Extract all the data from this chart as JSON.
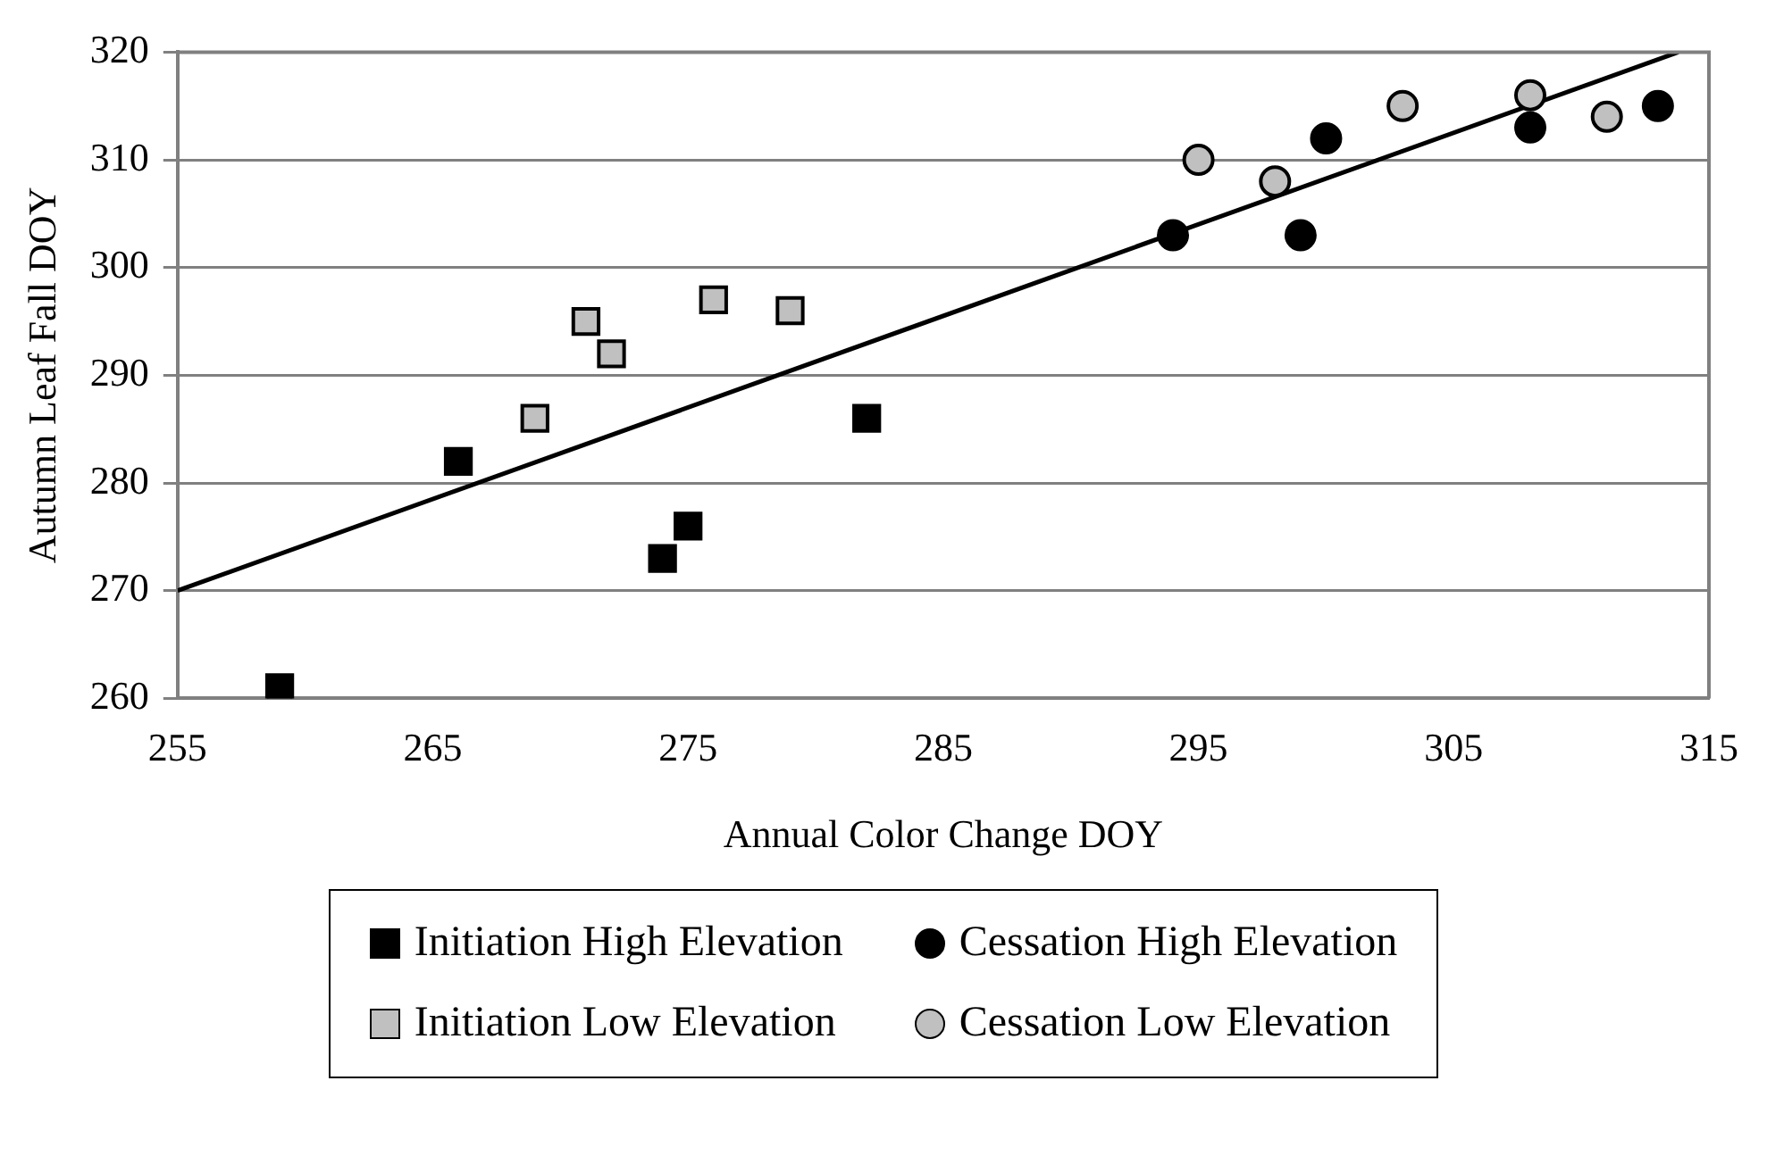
{
  "chart_data": {
    "type": "scatter",
    "xlabel": "Annual Color Change DOY",
    "ylabel": "Autumn Leaf Fall DOY",
    "xlim": [
      255,
      315
    ],
    "xticks": [
      255,
      265,
      275,
      285,
      295,
      305,
      315
    ],
    "ylim": [
      260,
      320
    ],
    "yticks": [
      260,
      270,
      280,
      290,
      300,
      310,
      320
    ],
    "grid": "y",
    "legend": "bottom",
    "series": [
      {
        "name": "Initiation High Elevation",
        "color": "#000000",
        "marker": "square",
        "x": [
          259,
          266,
          274,
          275,
          282
        ],
        "values": [
          261,
          282,
          273,
          276,
          286
        ]
      },
      {
        "name": "Cessation High Elevation",
        "color": "#000000",
        "marker": "circle",
        "x": [
          294,
          299,
          300,
          308,
          313
        ],
        "values": [
          303,
          303,
          312,
          313,
          315
        ]
      },
      {
        "name": "Initiation Low Elevation",
        "color": "#c0c0c0",
        "marker": "square",
        "x": [
          269,
          271,
          272,
          276,
          279
        ],
        "values": [
          286,
          295,
          292,
          297,
          296
        ]
      },
      {
        "name": "Cessation Low Elevation",
        "color": "#c0c0c0",
        "marker": "circle",
        "x": [
          295,
          298,
          303,
          308,
          311
        ],
        "values": [
          310,
          308,
          315,
          316,
          314
        ]
      },
      {
        "type": "line",
        "color": "#000000",
        "marker": "none",
        "x": [
          255,
          313.8
        ],
        "values": [
          270,
          320
        ]
      }
    ]
  }
}
